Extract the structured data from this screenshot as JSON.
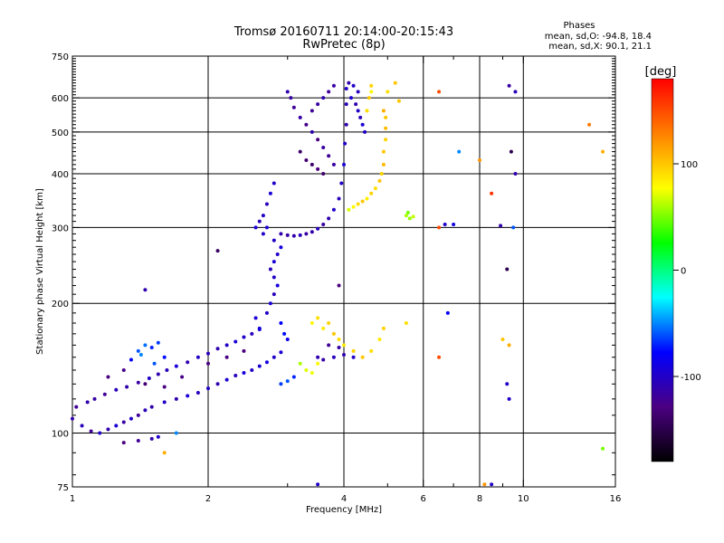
{
  "title": {
    "line1": "Tromsø 20160711 20:14:00-20:15:43",
    "line2": "RwPretec (8p)"
  },
  "stats": {
    "header": "Phases",
    "o_line": "mean, sd,O: -94.8, 18.4",
    "x_line": "mean, sd,X:  90.1, 21.1"
  },
  "colorbar": {
    "label": "[deg]",
    "ticks": [
      {
        "value": 100,
        "label": "100"
      },
      {
        "value": 0,
        "label": "0"
      },
      {
        "value": -100,
        "label": "-100"
      }
    ],
    "range": [
      -180,
      180
    ],
    "colors": [
      "#000000",
      "#4b0082",
      "#0000ff",
      "#00ffff",
      "#00ff00",
      "#ffff00",
      "#ff8000",
      "#ff0000"
    ]
  },
  "chart_data": {
    "type": "scatter",
    "xlabel": "Frequency [MHz]",
    "ylabel": "Stationary phase Virtual Height [km]",
    "xscale": "log",
    "yscale": "log",
    "xlim": [
      1,
      16
    ],
    "ylim": [
      75,
      750
    ],
    "xticks": [
      1,
      2,
      4,
      6,
      8,
      10,
      16
    ],
    "xgrid": [
      2,
      4,
      6,
      8,
      10
    ],
    "xminor": [
      3,
      5,
      7,
      9
    ],
    "yticks": [
      75,
      100,
      200,
      300,
      400,
      500,
      600,
      750
    ],
    "ygrid": [
      100,
      200,
      300,
      400,
      500,
      600
    ],
    "grid": true,
    "series": [
      {
        "points": [
          [
            1.0,
            108,
            -110
          ],
          [
            1.05,
            104,
            -105
          ],
          [
            1.1,
            101,
            -120
          ],
          [
            1.15,
            100,
            -100
          ],
          [
            1.2,
            102,
            -110
          ],
          [
            1.25,
            104,
            -95
          ],
          [
            1.3,
            106,
            -115
          ],
          [
            1.35,
            108,
            -100
          ],
          [
            1.4,
            110,
            -120
          ],
          [
            1.45,
            113,
            -105
          ],
          [
            1.5,
            115,
            -110
          ],
          [
            1.6,
            118,
            -100
          ],
          [
            1.7,
            120,
            -110
          ],
          [
            1.8,
            122,
            -95
          ],
          [
            1.9,
            124,
            -105
          ],
          [
            2.0,
            127,
            -100
          ],
          [
            2.1,
            130,
            -110
          ],
          [
            2.2,
            133,
            -95
          ],
          [
            2.3,
            136,
            -105
          ],
          [
            2.4,
            138,
            -90
          ],
          [
            2.5,
            140,
            -100
          ],
          [
            2.6,
            143,
            -95
          ],
          [
            2.7,
            146,
            -90
          ],
          [
            2.8,
            150,
            -100
          ],
          [
            2.9,
            154,
            -95
          ],
          [
            1.02,
            115,
            -120
          ],
          [
            1.08,
            118,
            -110
          ],
          [
            1.12,
            120,
            -115
          ],
          [
            1.18,
            123,
            -120
          ],
          [
            1.25,
            126,
            -105
          ],
          [
            1.32,
            128,
            -110
          ],
          [
            1.4,
            131,
            -115
          ],
          [
            1.48,
            134,
            -100
          ],
          [
            1.55,
            137,
            -110
          ],
          [
            1.62,
            140,
            -105
          ],
          [
            1.7,
            143,
            -95
          ],
          [
            1.8,
            146,
            -110
          ],
          [
            1.9,
            150,
            -100
          ],
          [
            2.0,
            153,
            -105
          ],
          [
            2.1,
            157,
            -110
          ],
          [
            2.2,
            160,
            -100
          ],
          [
            2.3,
            163,
            -95
          ],
          [
            2.4,
            167,
            -100
          ],
          [
            2.5,
            170,
            -105
          ],
          [
            2.6,
            174,
            -90
          ],
          [
            1.4,
            155,
            -60
          ],
          [
            1.45,
            160,
            -55
          ],
          [
            1.5,
            158,
            -70
          ],
          [
            1.55,
            162,
            -65
          ],
          [
            1.6,
            150,
            -75
          ],
          [
            1.35,
            148,
            -80
          ],
          [
            1.42,
            152,
            -50
          ],
          [
            1.52,
            145,
            -60
          ],
          [
            1.2,
            135,
            -130
          ],
          [
            1.3,
            140,
            -125
          ],
          [
            1.45,
            130,
            -135
          ],
          [
            1.6,
            128,
            -130
          ],
          [
            1.75,
            135,
            -125
          ],
          [
            2.0,
            145,
            -130
          ],
          [
            2.2,
            150,
            -128
          ],
          [
            2.4,
            155,
            -130
          ],
          [
            2.7,
            190,
            -100
          ],
          [
            2.75,
            200,
            -95
          ],
          [
            2.8,
            210,
            -105
          ],
          [
            2.85,
            220,
            -90
          ],
          [
            2.8,
            230,
            -100
          ],
          [
            2.75,
            240,
            -105
          ],
          [
            2.8,
            250,
            -95
          ],
          [
            2.85,
            260,
            -100
          ],
          [
            2.9,
            270,
            -90
          ],
          [
            2.8,
            280,
            -100
          ],
          [
            2.7,
            300,
            -95
          ],
          [
            2.65,
            320,
            -100
          ],
          [
            2.7,
            340,
            -105
          ],
          [
            2.75,
            360,
            -95
          ],
          [
            2.8,
            380,
            -100
          ],
          [
            2.9,
            180,
            -80
          ],
          [
            2.95,
            170,
            -75
          ],
          [
            3.0,
            165,
            -85
          ],
          [
            2.6,
            175,
            -90
          ],
          [
            2.55,
            185,
            -95
          ],
          [
            2.65,
            290,
            -100
          ],
          [
            2.6,
            310,
            -105
          ],
          [
            2.55,
            300,
            -95
          ],
          [
            2.9,
            290,
            -110
          ],
          [
            3.0,
            288,
            -115
          ],
          [
            3.1,
            287,
            -110
          ],
          [
            3.2,
            288,
            -105
          ],
          [
            3.3,
            290,
            -115
          ],
          [
            3.4,
            293,
            -110
          ],
          [
            3.5,
            298,
            -105
          ],
          [
            3.6,
            305,
            -115
          ],
          [
            3.7,
            315,
            -110
          ],
          [
            3.8,
            330,
            -100
          ],
          [
            3.9,
            350,
            -105
          ],
          [
            3.95,
            380,
            -100
          ],
          [
            4.0,
            420,
            -95
          ],
          [
            4.02,
            470,
            -100
          ],
          [
            4.05,
            520,
            -110
          ],
          [
            4.05,
            580,
            -105
          ],
          [
            4.05,
            630,
            -100
          ],
          [
            3.0,
            620,
            -110
          ],
          [
            3.05,
            600,
            -115
          ],
          [
            3.1,
            570,
            -120
          ],
          [
            3.2,
            540,
            -115
          ],
          [
            3.3,
            520,
            -125
          ],
          [
            3.4,
            500,
            -110
          ],
          [
            3.5,
            480,
            -130
          ],
          [
            3.6,
            460,
            -115
          ],
          [
            3.7,
            440,
            -120
          ],
          [
            3.8,
            420,
            -115
          ],
          [
            3.2,
            450,
            -140
          ],
          [
            3.3,
            430,
            -135
          ],
          [
            3.4,
            420,
            -140
          ],
          [
            3.5,
            410,
            -130
          ],
          [
            3.6,
            400,
            -138
          ],
          [
            3.4,
            560,
            -120
          ],
          [
            3.5,
            580,
            -115
          ],
          [
            3.6,
            600,
            -110
          ],
          [
            3.7,
            620,
            -120
          ],
          [
            3.8,
            640,
            -115
          ],
          [
            4.1,
            650,
            -110
          ],
          [
            4.2,
            640,
            -100
          ],
          [
            4.3,
            620,
            -105
          ],
          [
            4.15,
            600,
            -95
          ],
          [
            4.25,
            580,
            -110
          ],
          [
            4.3,
            560,
            -100
          ],
          [
            4.35,
            540,
            -105
          ],
          [
            4.4,
            520,
            -95
          ],
          [
            4.45,
            500,
            -100
          ],
          [
            4.1,
            330,
            70
          ],
          [
            4.2,
            335,
            80
          ],
          [
            4.3,
            340,
            90
          ],
          [
            4.4,
            345,
            100
          ],
          [
            4.5,
            350,
            85
          ],
          [
            4.6,
            360,
            95
          ],
          [
            4.7,
            370,
            90
          ],
          [
            4.8,
            385,
            100
          ],
          [
            4.85,
            400,
            95
          ],
          [
            4.9,
            420,
            105
          ],
          [
            4.9,
            450,
            100
          ],
          [
            4.95,
            480,
            95
          ],
          [
            4.95,
            510,
            105
          ],
          [
            4.95,
            540,
            100
          ],
          [
            4.9,
            560,
            110
          ],
          [
            4.5,
            560,
            90
          ],
          [
            4.55,
            600,
            100
          ],
          [
            4.6,
            640,
            95
          ],
          [
            5.5,
            320,
            60
          ],
          [
            5.6,
            315,
            55
          ],
          [
            5.7,
            318,
            65
          ],
          [
            5.55,
            325,
            50
          ],
          [
            3.4,
            180,
            80
          ],
          [
            3.5,
            185,
            90
          ],
          [
            3.6,
            175,
            85
          ],
          [
            3.7,
            180,
            95
          ],
          [
            3.8,
            170,
            100
          ],
          [
            3.9,
            165,
            90
          ],
          [
            4.0,
            160,
            85
          ],
          [
            4.2,
            155,
            95
          ],
          [
            4.4,
            150,
            100
          ],
          [
            4.6,
            155,
            90
          ],
          [
            4.8,
            165,
            85
          ],
          [
            4.9,
            175,
            95
          ],
          [
            3.2,
            145,
            60
          ],
          [
            3.3,
            140,
            70
          ],
          [
            3.4,
            138,
            75
          ],
          [
            3.5,
            145,
            80
          ],
          [
            3.5,
            150,
            -110
          ],
          [
            3.6,
            148,
            -115
          ],
          [
            3.8,
            150,
            -105
          ],
          [
            4.0,
            152,
            -110
          ],
          [
            4.2,
            150,
            -100
          ],
          [
            3.7,
            160,
            -120
          ],
          [
            3.9,
            158,
            -115
          ],
          [
            3.1,
            135,
            -70
          ],
          [
            3.0,
            132,
            -60
          ],
          [
            2.9,
            130,
            -65
          ],
          [
            1.3,
            95,
            -130
          ],
          [
            1.4,
            96,
            -120
          ],
          [
            1.5,
            97,
            -110
          ],
          [
            1.55,
            98,
            -100
          ],
          [
            1.6,
            90,
            110
          ],
          [
            1.7,
            100,
            -50
          ],
          [
            2.1,
            265,
            -140
          ],
          [
            3.9,
            220,
            -130
          ],
          [
            6.5,
            300,
            150
          ],
          [
            6.7,
            305,
            -100
          ],
          [
            7.0,
            305,
            -90
          ],
          [
            8.9,
            303,
            -110
          ],
          [
            9.5,
            300,
            -60
          ],
          [
            6.5,
            620,
            150
          ],
          [
            7.2,
            450,
            -50
          ],
          [
            8.0,
            430,
            120
          ],
          [
            9.4,
            450,
            -150
          ],
          [
            9.6,
            400,
            -110
          ],
          [
            9.3,
            640,
            -115
          ],
          [
            9.6,
            620,
            -105
          ],
          [
            8.5,
            360,
            160
          ],
          [
            6.8,
            190,
            -80
          ],
          [
            6.5,
            150,
            150
          ],
          [
            9.0,
            165,
            100
          ],
          [
            9.3,
            160,
            110
          ],
          [
            9.2,
            130,
            -100
          ],
          [
            9.3,
            120,
            -100
          ],
          [
            14,
            520,
            130
          ],
          [
            15,
            450,
            110
          ],
          [
            15,
            92,
            50
          ],
          [
            3.5,
            76,
            -100
          ],
          [
            8.2,
            76,
            120
          ],
          [
            8.5,
            76,
            -100
          ],
          [
            9.2,
            240,
            -150
          ],
          [
            1.45,
            215,
            -110
          ],
          [
            5.2,
            650,
            100
          ],
          [
            5.0,
            620,
            90
          ],
          [
            4.6,
            620,
            80
          ],
          [
            5.3,
            590,
            100
          ],
          [
            5.5,
            180,
            90
          ]
        ]
      }
    ]
  }
}
